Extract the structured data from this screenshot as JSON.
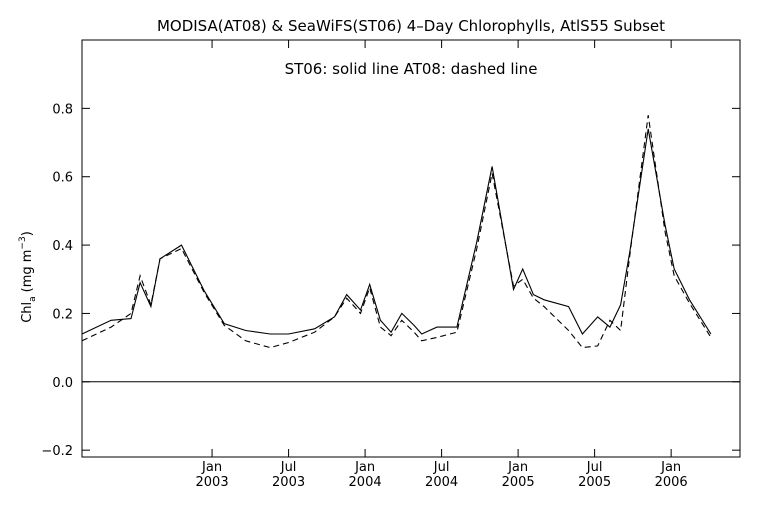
{
  "chart_data": {
    "type": "line",
    "title": "MODISA(AT08) & SeaWiFS(ST06) 4–Day Chlorophylls, AtlS55 Subset",
    "annotation": "ST06: solid line    AT08: dashed line",
    "ylabel_main": "Chl",
    "ylabel_sub": "a",
    "ylabel_unit": "(mg m",
    "ylabel_exp": "−3",
    "ylabel_close": ")",
    "ylim": [
      -0.22,
      1.0
    ],
    "xlim": [
      2002.15,
      2006.45
    ],
    "yticks": [
      {
        "v": -0.2,
        "label": "−0.2"
      },
      {
        "v": 0.0,
        "label": "0.0"
      },
      {
        "v": 0.2,
        "label": "0.2"
      },
      {
        "v": 0.4,
        "label": "0.4"
      },
      {
        "v": 0.6,
        "label": "0.6"
      },
      {
        "v": 0.8,
        "label": "0.8"
      }
    ],
    "xticks": [
      {
        "v": 2003.0,
        "month": "Jan",
        "year": "2003"
      },
      {
        "v": 2003.5,
        "month": "Jul",
        "year": "2003"
      },
      {
        "v": 2004.0,
        "month": "Jan",
        "year": "2004"
      },
      {
        "v": 2004.5,
        "month": "Jul",
        "year": "2004"
      },
      {
        "v": 2005.0,
        "month": "Jan",
        "year": "2005"
      },
      {
        "v": 2005.5,
        "month": "Jul",
        "year": "2005"
      },
      {
        "v": 2006.0,
        "month": "Jan",
        "year": "2006"
      }
    ],
    "zero_line": 0.0,
    "series": [
      {
        "name": "ST06",
        "style": "solid",
        "color": "#000000",
        "x": [
          2002.15,
          2002.34,
          2002.47,
          2002.53,
          2002.6,
          2002.66,
          2002.8,
          2002.95,
          2003.08,
          2003.22,
          2003.38,
          2003.5,
          2003.67,
          2003.8,
          2003.88,
          2003.97,
          2004.03,
          2004.1,
          2004.17,
          2004.24,
          2004.32,
          2004.37,
          2004.47,
          2004.6,
          2004.73,
          2004.83,
          2004.97,
          2005.03,
          2005.1,
          2005.17,
          2005.33,
          2005.42,
          2005.52,
          2005.6,
          2005.67,
          2005.73,
          2005.85,
          2005.96,
          2006.02,
          2006.12,
          2006.26
        ],
        "y": [
          0.14,
          0.18,
          0.185,
          0.29,
          0.22,
          0.36,
          0.4,
          0.265,
          0.17,
          0.15,
          0.14,
          0.14,
          0.155,
          0.19,
          0.255,
          0.21,
          0.285,
          0.18,
          0.145,
          0.2,
          0.165,
          0.14,
          0.16,
          0.16,
          0.41,
          0.63,
          0.27,
          0.33,
          0.255,
          0.24,
          0.22,
          0.14,
          0.19,
          0.16,
          0.225,
          0.38,
          0.74,
          0.46,
          0.33,
          0.24,
          0.14
        ]
      },
      {
        "name": "AT08",
        "style": "dashed",
        "color": "#000000",
        "x": [
          2002.15,
          2002.34,
          2002.47,
          2002.53,
          2002.6,
          2002.66,
          2002.8,
          2002.95,
          2003.08,
          2003.22,
          2003.38,
          2003.5,
          2003.67,
          2003.8,
          2003.88,
          2003.97,
          2004.03,
          2004.1,
          2004.17,
          2004.24,
          2004.32,
          2004.37,
          2004.47,
          2004.6,
          2004.73,
          2004.83,
          2004.97,
          2005.03,
          2005.1,
          2005.17,
          2005.33,
          2005.42,
          2005.52,
          2005.6,
          2005.67,
          2005.73,
          2005.85,
          2005.96,
          2006.02,
          2006.12,
          2006.26
        ],
        "y": [
          0.12,
          0.16,
          0.2,
          0.31,
          0.225,
          0.36,
          0.39,
          0.26,
          0.165,
          0.12,
          0.1,
          0.115,
          0.145,
          0.19,
          0.245,
          0.2,
          0.275,
          0.16,
          0.135,
          0.18,
          0.145,
          0.12,
          0.13,
          0.145,
          0.39,
          0.61,
          0.28,
          0.3,
          0.245,
          0.22,
          0.15,
          0.1,
          0.105,
          0.18,
          0.15,
          0.37,
          0.78,
          0.44,
          0.31,
          0.23,
          0.13
        ]
      }
    ]
  }
}
